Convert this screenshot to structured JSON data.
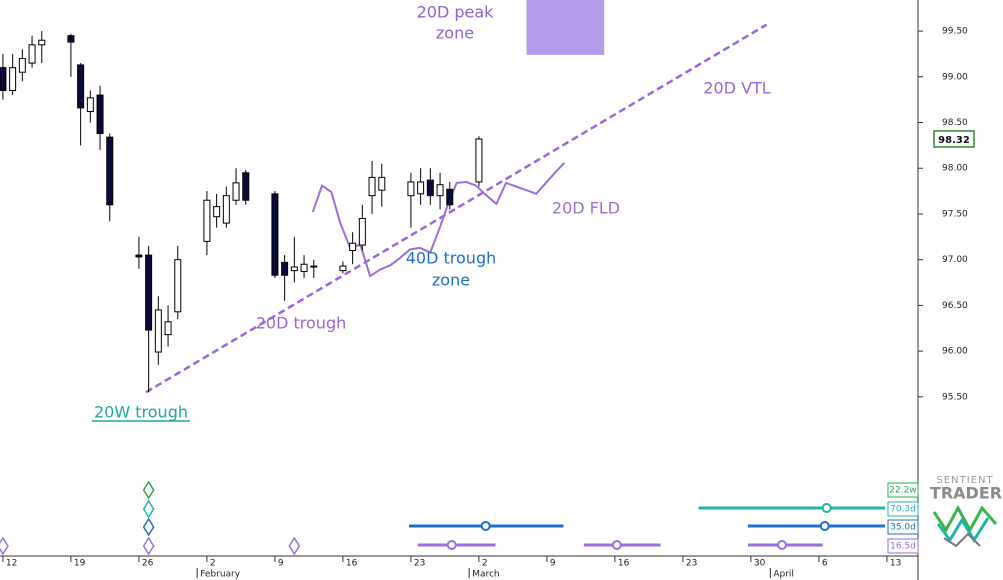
{
  "chart_data": {
    "type": "candlestick",
    "x": [
      0,
      1,
      2,
      3,
      4,
      7,
      8,
      9,
      10,
      11,
      14,
      15,
      16,
      17,
      18,
      21,
      22,
      23,
      24,
      25,
      28,
      29,
      30,
      31,
      32,
      35,
      36,
      37,
      38,
      39,
      42,
      43,
      44,
      45,
      46,
      49
    ],
    "open": [
      99.1,
      98.85,
      99.05,
      99.15,
      99.35,
      99.45,
      99.13,
      98.62,
      98.8,
      98.34,
      97.05,
      97.05,
      95.99,
      96.18,
      96.43,
      97.2,
      97.47,
      97.4,
      97.65,
      97.95,
      97.72,
      96.97,
      96.88,
      96.87,
      96.93,
      96.88,
      97.1,
      97.16,
      97.7,
      97.76,
      97.7,
      97.72,
      97.87,
      97.7,
      97.77,
      97.85
    ],
    "high": [
      99.25,
      99.25,
      99.3,
      99.45,
      99.5,
      99.47,
      99.15,
      98.85,
      98.9,
      98.38,
      97.25,
      97.15,
      96.6,
      96.5,
      97.15,
      97.75,
      97.72,
      97.8,
      98.0,
      97.98,
      97.75,
      97.05,
      97.25,
      97.05,
      97.0,
      96.98,
      97.3,
      97.6,
      98.08,
      98.05,
      97.95,
      98.0,
      98.0,
      97.95,
      97.85,
      98.35
    ],
    "low": [
      98.75,
      98.8,
      98.95,
      99.1,
      99.15,
      99.0,
      98.25,
      98.5,
      98.2,
      97.42,
      96.9,
      95.55,
      95.85,
      96.05,
      96.35,
      97.05,
      97.35,
      97.35,
      97.6,
      97.6,
      96.8,
      96.55,
      96.75,
      96.8,
      96.8,
      96.85,
      96.95,
      97.1,
      97.5,
      97.58,
      97.35,
      97.6,
      97.6,
      97.55,
      97.55,
      97.8
    ],
    "close": [
      98.85,
      99.1,
      99.2,
      99.35,
      99.4,
      99.38,
      98.66,
      98.77,
      98.38,
      97.6,
      97.03,
      96.23,
      96.45,
      96.32,
      97.0,
      97.65,
      97.58,
      97.7,
      97.84,
      97.65,
      96.83,
      96.83,
      96.92,
      96.95,
      96.92,
      96.93,
      97.18,
      97.45,
      97.9,
      97.9,
      97.85,
      97.85,
      97.7,
      97.82,
      97.6,
      98.32
    ],
    "up_color": "#ffffff",
    "down_color": "#0b0b3b",
    "xlim": [
      -0.3,
      94.2
    ],
    "ylim": [
      93.77,
      99.84
    ],
    "yticks": [
      {
        "value": 95.5,
        "label": "95.50"
      },
      {
        "value": 96,
        "label": "96.00"
      },
      {
        "value": 96.5,
        "label": "96.50"
      },
      {
        "value": 97,
        "label": "97.00"
      },
      {
        "value": 97.5,
        "label": "97.50"
      },
      {
        "value": 98,
        "label": "98.00"
      },
      {
        "value": 98.5,
        "label": "98.50"
      },
      {
        "value": 99,
        "label": "99.00"
      },
      {
        "value": 99.5,
        "label": "99.50"
      }
    ],
    "xticks": [
      {
        "value": 0,
        "label": "12"
      },
      {
        "value": 7,
        "label": "19"
      },
      {
        "value": 14,
        "label": "26"
      },
      {
        "value": 21,
        "label": "2"
      },
      {
        "value": 28,
        "label": "9"
      },
      {
        "value": 35,
        "label": "16"
      },
      {
        "value": 42,
        "label": "23"
      },
      {
        "value": 49,
        "label": "2"
      },
      {
        "value": 56,
        "label": "9"
      },
      {
        "value": 63,
        "label": "16"
      },
      {
        "value": 70,
        "label": "23"
      },
      {
        "value": 77,
        "label": "30"
      },
      {
        "value": 84,
        "label": "6"
      },
      {
        "value": 91,
        "label": "13"
      }
    ],
    "month_ticks": [
      {
        "value": 20,
        "label": "February"
      },
      {
        "value": 48,
        "label": "March"
      },
      {
        "value": 79,
        "label": "April"
      }
    ],
    "overlays": [
      {
        "name": "20D VTL",
        "color": "#9a66dd",
        "dashed": true,
        "x": [
          14.73,
          78.6
        ],
        "values": [
          95.55,
          99.57
        ]
      },
      {
        "name": "20D FLD",
        "color": "#9a6fd8",
        "dashed": false,
        "x": [
          31.9,
          32.85,
          33.8,
          34.7,
          35.7,
          36.8,
          37.8,
          38.8,
          39.9,
          40.9,
          41.9,
          42.9,
          44.0,
          45.0,
          45.8,
          46.7,
          47.7,
          48.7,
          49.7,
          50.8,
          51.8,
          52.8,
          53.9,
          54.9,
          55.9,
          56.9,
          57.8
        ],
        "values": [
          97.52,
          97.81,
          97.74,
          97.41,
          97.14,
          97.16,
          96.82,
          96.89,
          96.94,
          97.02,
          97.11,
          97.13,
          97.08,
          97.36,
          97.6,
          97.84,
          97.85,
          97.81,
          97.71,
          97.61,
          97.84,
          97.8,
          97.76,
          97.72,
          97.84,
          97.96,
          98.06
        ]
      }
    ],
    "peak_zone": {
      "label": [
        "20D peak",
        "zone"
      ],
      "color": "#b59cea",
      "x": [
        53.9,
        61.9
      ],
      "y": [
        99.24,
        99.84
      ]
    },
    "annotations": [
      {
        "text": [
          "40D trough",
          "zone"
        ],
        "color": "#1f6fc9"
      },
      {
        "text": [
          "20D trough"
        ],
        "color": "#9a66dd"
      },
      {
        "text": [
          "20W trough"
        ],
        "color": "#22a899"
      }
    ],
    "cycles": [
      {
        "label": "22.2w",
        "color": "#2ea84f",
        "troughs": [
          15
        ],
        "projections": []
      },
      {
        "label": "70.3d",
        "color": "#1fb5ad",
        "troughs": [
          15
        ],
        "projections": [
          [
            71.6,
            84.8,
            90.8
          ]
        ]
      },
      {
        "label": "35.0d",
        "color": "#1f6fc9",
        "troughs": [
          15
        ],
        "projections": [
          [
            41.8,
            49.7,
            57.7
          ],
          [
            76.7,
            84.6,
            90.8
          ]
        ]
      },
      {
        "label": "16.5d",
        "color": "#9a6fe0",
        "troughs": [
          0,
          15,
          30
        ],
        "projections": [
          [
            42.7,
            46.2,
            50.7
          ],
          [
            59.8,
            63.2,
            67.7
          ],
          [
            76.7,
            80.2,
            84.4
          ]
        ]
      }
    ],
    "logo": [
      "SENTIENT",
      "TRADER"
    ]
  }
}
